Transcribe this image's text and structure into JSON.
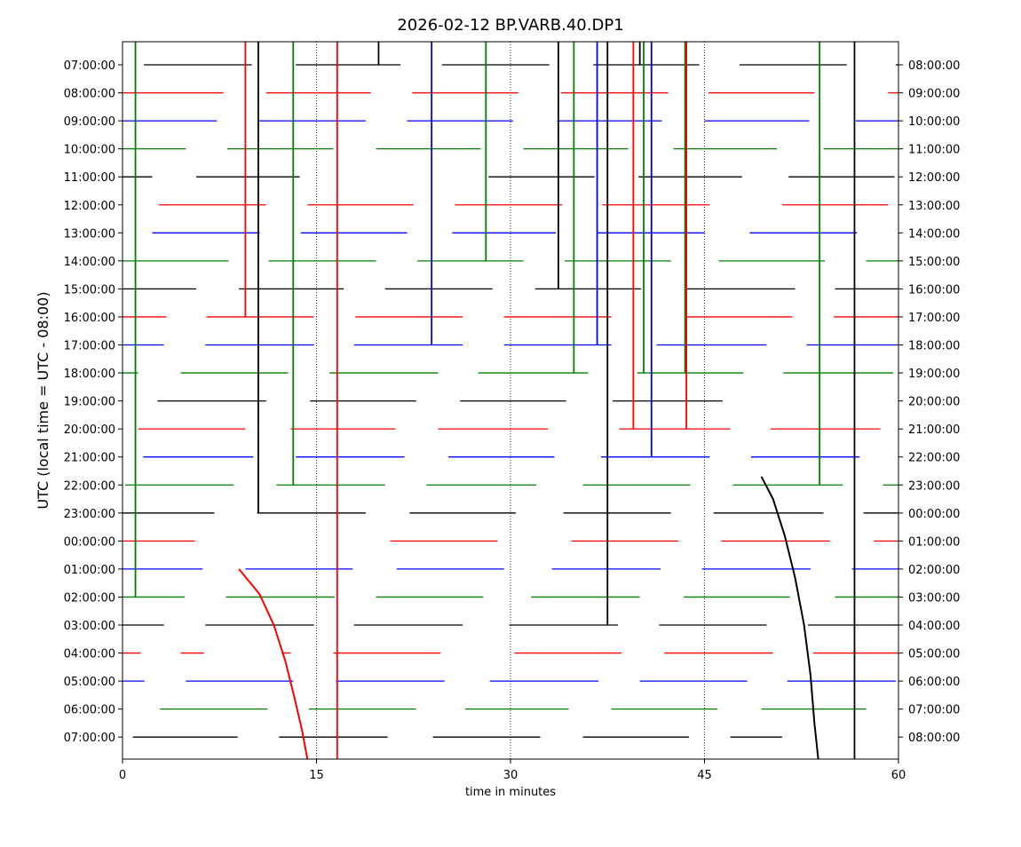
{
  "chart_data": {
    "type": "line",
    "title": "2026-02-12 BP.VARB.40.DP1",
    "xlabel": "time in minutes",
    "ylabel": "UTC (local time = UTC - 08:00)",
    "xlim": [
      0,
      60
    ],
    "x_ticks": [
      "0",
      "15",
      "30",
      "45",
      "60"
    ],
    "x_tick_values": [
      0,
      15,
      30,
      45,
      60
    ],
    "grid_x_dotted": [
      15,
      30,
      45
    ],
    "left_labels": [
      "07:00:00",
      "08:00:00",
      "09:00:00",
      "10:00:00",
      "11:00:00",
      "12:00:00",
      "13:00:00",
      "14:00:00",
      "15:00:00",
      "16:00:00",
      "17:00:00",
      "18:00:00",
      "19:00:00",
      "20:00:00",
      "21:00:00",
      "22:00:00",
      "23:00:00",
      "00:00:00",
      "01:00:00",
      "02:00:00",
      "03:00:00",
      "04:00:00",
      "05:00:00",
      "06:00:00",
      "07:00:00"
    ],
    "right_labels": [
      "08:00:00",
      "09:00:00",
      "10:00:00",
      "11:00:00",
      "12:00:00",
      "13:00:00",
      "14:00:00",
      "15:00:00",
      "16:00:00",
      "17:00:00",
      "18:00:00",
      "19:00:00",
      "20:00:00",
      "21:00:00",
      "22:00:00",
      "23:00:00",
      "00:00:00",
      "01:00:00",
      "02:00:00",
      "03:00:00",
      "04:00:00",
      "05:00:00",
      "06:00:00",
      "07:00:00",
      "08:00:00"
    ],
    "row_colors": [
      "#000000",
      "#ff0000",
      "#0000ff",
      "#008000"
    ],
    "rows": [
      [
        [
          1.65,
          10.0
        ],
        [
          13.4,
          21.5
        ],
        [
          24.7,
          33.0
        ],
        [
          36.4,
          44.6
        ],
        [
          47.7,
          56.0
        ],
        [
          59.8,
          60
        ]
      ],
      [
        [
          0,
          7.8
        ],
        [
          11.1,
          19.2
        ],
        [
          22.4,
          30.6
        ],
        [
          33.9,
          42.2
        ],
        [
          45.3,
          53.5
        ],
        [
          59.2,
          60
        ]
      ],
      [
        [
          0,
          7.3
        ],
        [
          10.5,
          18.8
        ],
        [
          22.0,
          30.2
        ],
        [
          33.6,
          41.7
        ],
        [
          45.0,
          53.1
        ],
        [
          56.7,
          60
        ]
      ],
      [
        [
          0,
          4.9
        ],
        [
          8.1,
          16.3
        ],
        [
          19.6,
          27.7
        ],
        [
          31.0,
          39.1
        ],
        [
          42.6,
          50.6
        ],
        [
          54.2,
          60
        ]
      ],
      [
        [
          0,
          2.3
        ],
        [
          5.7,
          13.7
        ],
        [
          28.3,
          36.5
        ],
        [
          39.9,
          47.9
        ],
        [
          51.5,
          59.7
        ]
      ],
      [
        [
          2.8,
          11.1
        ],
        [
          14.3,
          22.5
        ],
        [
          25.7,
          34.0
        ],
        [
          37.1,
          45.4
        ],
        [
          51.0,
          59.2
        ]
      ],
      [
        [
          2.3,
          10.6
        ],
        [
          13.8,
          22.0
        ],
        [
          25.5,
          33.5
        ],
        [
          36.7,
          45.0
        ],
        [
          48.5,
          56.8
        ]
      ],
      [
        [
          0,
          8.2
        ],
        [
          11.3,
          19.6
        ],
        [
          22.8,
          31.0
        ],
        [
          34.2,
          42.4
        ],
        [
          46.1,
          54.3
        ],
        [
          57.5,
          60
        ]
      ],
      [
        [
          0,
          5.7
        ],
        [
          9.0,
          17.1
        ],
        [
          20.3,
          28.6
        ],
        [
          31.9,
          40.1
        ],
        [
          43.6,
          52.0
        ],
        [
          55.1,
          60
        ]
      ],
      [
        [
          0,
          3.4
        ],
        [
          6.5,
          14.8
        ],
        [
          18.0,
          26.3
        ],
        [
          29.5,
          37.8
        ],
        [
          43.6,
          51.8
        ],
        [
          55.0,
          60
        ]
      ],
      [
        [
          0,
          3.2
        ],
        [
          6.4,
          14.8
        ],
        [
          17.9,
          26.3
        ],
        [
          29.5,
          37.8
        ],
        [
          41.3,
          49.8
        ],
        [
          52.9,
          60
        ]
      ],
      [
        [
          0,
          1.2
        ],
        [
          4.5,
          12.8
        ],
        [
          16.0,
          24.4
        ],
        [
          27.5,
          36.0
        ],
        [
          39.8,
          48.0
        ],
        [
          51.1,
          59.6
        ]
      ],
      [
        [
          2.7,
          11.1
        ],
        [
          14.5,
          22.7
        ],
        [
          26.1,
          34.3
        ],
        [
          37.9,
          46.4
        ]
      ],
      [
        [
          1.2,
          9.5
        ],
        [
          13.0,
          21.1
        ],
        [
          24.4,
          32.9
        ],
        [
          38.4,
          47.0
        ],
        [
          50.1,
          58.6
        ]
      ],
      [
        [
          1.6,
          10.1
        ],
        [
          13.4,
          21.8
        ],
        [
          25.2,
          33.4
        ],
        [
          37.0,
          45.4
        ],
        [
          48.6,
          57.0
        ]
      ],
      [
        [
          0.2,
          8.6
        ],
        [
          11.9,
          20.3
        ],
        [
          23.5,
          32.0
        ],
        [
          35.6,
          43.9
        ],
        [
          47.2,
          55.7
        ],
        [
          58.8,
          60
        ]
      ],
      [
        [
          0,
          7.1
        ],
        [
          10.4,
          18.8
        ],
        [
          22.2,
          30.4
        ],
        [
          34.1,
          42.4
        ],
        [
          45.7,
          54.2
        ],
        [
          57.3,
          60
        ]
      ],
      [
        [
          0,
          5.6
        ],
        [
          20.7,
          29.0
        ],
        [
          34.7,
          43.0
        ],
        [
          46.3,
          54.7
        ],
        [
          58.1,
          60
        ]
      ],
      [
        [
          0,
          6.2
        ],
        [
          9.5,
          17.8
        ],
        [
          21.2,
          29.5
        ],
        [
          33.2,
          41.6
        ],
        [
          44.8,
          53.2
        ],
        [
          56.4,
          60
        ]
      ],
      [
        [
          0,
          4.8
        ],
        [
          8.0,
          16.4
        ],
        [
          19.6,
          27.9
        ],
        [
          31.6,
          40.0
        ],
        [
          43.4,
          51.6
        ],
        [
          55.1,
          60
        ]
      ],
      [
        [
          0,
          3.2
        ],
        [
          6.4,
          14.8
        ],
        [
          17.9,
          26.3
        ],
        [
          29.9,
          38.3
        ],
        [
          41.5,
          49.8
        ],
        [
          53.0,
          60
        ]
      ],
      [
        [
          0,
          1.4
        ],
        [
          4.5,
          6.3
        ],
        [
          12.3,
          13.0
        ],
        [
          16.3,
          24.6
        ],
        [
          30.3,
          38.6
        ],
        [
          41.9,
          50.3
        ],
        [
          53.4,
          60
        ]
      ],
      [
        [
          0,
          1.7
        ],
        [
          4.9,
          13.2
        ],
        [
          16.5,
          24.9
        ],
        [
          28.4,
          36.8
        ],
        [
          40.0,
          48.3
        ],
        [
          51.4,
          59.8
        ]
      ],
      [
        [
          2.9,
          11.2
        ],
        [
          14.4,
          22.7
        ],
        [
          26.5,
          34.5
        ],
        [
          37.8,
          46.0
        ],
        [
          49.4,
          57.5
        ]
      ],
      [
        [
          0.8,
          8.9
        ],
        [
          12.1,
          20.5
        ],
        [
          24.0,
          32.3
        ],
        [
          35.6,
          43.8
        ],
        [
          47.0,
          51.0
        ]
      ]
    ],
    "spikes": [
      {
        "minute": 1.0,
        "to_row": 19,
        "color": "#008000"
      },
      {
        "minute": 9.5,
        "to_row": 9,
        "color": "#ff0000"
      },
      {
        "minute": 10.5,
        "to_row": 16,
        "color": "#000000"
      },
      {
        "minute": 13.2,
        "to_row": 15,
        "color": "#008000"
      },
      {
        "minute": 16.6,
        "to_row": 24.8,
        "color": "#ff0000"
      },
      {
        "minute": 19.8,
        "to_row": 0,
        "color": "#000000"
      },
      {
        "minute": 23.9,
        "to_row": 10,
        "color": "#0000ff"
      },
      {
        "minute": 28.1,
        "to_row": 7,
        "color": "#008000"
      },
      {
        "minute": 33.7,
        "to_row": 8,
        "color": "#000000"
      },
      {
        "minute": 34.9,
        "to_row": 11,
        "color": "#008000"
      },
      {
        "minute": 36.7,
        "to_row": 10,
        "color": "#0000ff"
      },
      {
        "minute": 37.5,
        "to_row": 20,
        "color": "#000000"
      },
      {
        "minute": 39.5,
        "to_row": 13,
        "color": "#ff0000"
      },
      {
        "minute": 40.0,
        "to_row": 0,
        "color": "#000000"
      },
      {
        "minute": 40.3,
        "to_row": 11,
        "color": "#008000"
      },
      {
        "minute": 40.9,
        "to_row": 14,
        "color": "#0000ff"
      },
      {
        "minute": 43.5,
        "to_row": 11,
        "color": "#008000"
      },
      {
        "minute": 43.6,
        "to_row": 13,
        "color": "#ff0000"
      },
      {
        "minute": 53.9,
        "to_row": 15,
        "color": "#008000"
      },
      {
        "minute": 56.6,
        "to_row": 24.8,
        "color": "#000000"
      }
    ],
    "curves": [
      {
        "color": "#ff0000",
        "points": [
          [
            9.0,
            18
          ],
          [
            10.6,
            18.9
          ],
          [
            11.7,
            20
          ],
          [
            12.6,
            21.3
          ],
          [
            13.3,
            22.6
          ],
          [
            13.9,
            23.8
          ],
          [
            14.3,
            24.8
          ]
        ]
      },
      {
        "color": "#000000",
        "points": [
          [
            49.4,
            14.7
          ],
          [
            50.3,
            15.5
          ],
          [
            51.2,
            16.8
          ],
          [
            52.0,
            18.3
          ],
          [
            52.7,
            20
          ],
          [
            53.2,
            21.8
          ],
          [
            53.5,
            23.5
          ],
          [
            53.8,
            24.8
          ]
        ]
      }
    ]
  }
}
